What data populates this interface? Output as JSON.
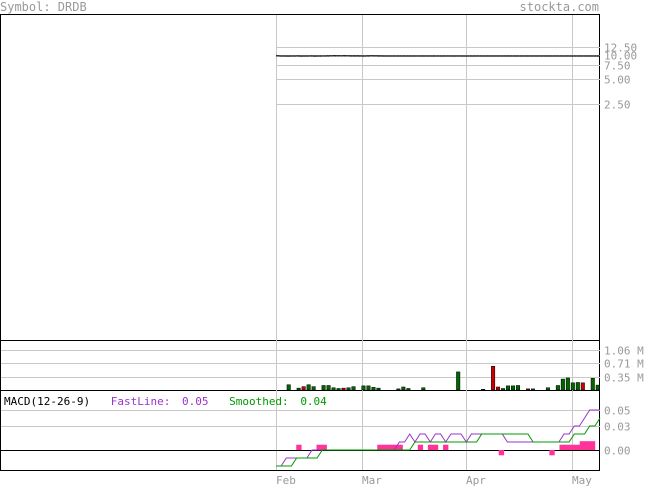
{
  "header": {
    "symbol_label": "Symbol: DRDB",
    "site_label": "stockta.com"
  },
  "colors": {
    "grid": "#c8c8c8",
    "axis_text": "#999999",
    "price": "#000000",
    "volume_up": "#006600",
    "volume_down": "#cc0000",
    "macd_fast": "#9933cc",
    "macd_smooth": "#009900",
    "histogram": "#ff3399"
  },
  "chart_data": [
    {
      "type": "line",
      "name": "price-panel",
      "y_scale": "log",
      "ylim": [
        1.0,
        12.5
      ],
      "y_ticks": [
        12.5,
        10.0,
        7.5,
        5.0,
        2.5
      ],
      "y_tick_labels": [
        "12.50",
        "10.00",
        "7.50",
        "5.00",
        "2.50"
      ],
      "x_ticks": [
        "Feb",
        "Mar",
        "Apr",
        "May"
      ],
      "series": [
        {
          "values": [
            [
              9.75,
              9.72
            ],
            [
              9.7,
              9.68
            ],
            [
              9.7,
              9.68
            ],
            [
              9.69,
              9.67
            ],
            [
              9.7,
              9.68
            ],
            [
              9.7,
              9.68
            ],
            [
              9.71,
              9.69
            ],
            [
              9.7,
              9.67
            ],
            [
              9.7,
              9.68
            ],
            [
              9.7,
              9.68
            ],
            [
              9.71,
              9.69
            ],
            [
              9.69,
              9.67
            ],
            [
              9.7,
              9.68
            ],
            [
              9.7,
              9.68
            ],
            [
              9.71,
              9.68
            ],
            [
              9.73,
              9.7
            ],
            [
              9.74,
              9.71
            ],
            [
              9.76,
              9.73
            ],
            [
              9.75,
              9.72
            ],
            [
              9.74,
              9.71
            ],
            [
              9.76,
              9.72
            ],
            [
              9.74,
              9.71
            ],
            [
              9.73,
              9.7
            ],
            [
              9.72,
              9.69
            ],
            [
              9.73,
              9.7
            ],
            [
              9.71,
              9.69
            ],
            [
              9.7,
              9.68
            ],
            [
              9.72,
              9.7
            ],
            [
              9.75,
              9.72
            ],
            [
              9.73,
              9.71
            ],
            [
              9.72,
              9.7
            ],
            [
              9.71,
              9.69
            ],
            [
              9.7,
              9.68
            ],
            [
              9.7,
              9.68
            ],
            [
              9.7,
              9.68
            ],
            [
              9.7,
              9.68
            ],
            [
              9.7,
              9.68
            ],
            [
              9.7,
              9.68
            ],
            [
              9.7,
              9.68
            ],
            [
              9.7,
              9.68
            ],
            [
              9.7,
              9.68
            ],
            [
              9.7,
              9.68
            ],
            [
              9.7,
              9.68
            ],
            [
              9.7,
              9.68
            ],
            [
              9.7,
              9.68
            ],
            [
              9.7,
              9.68
            ],
            [
              9.7,
              9.68
            ],
            [
              9.7,
              9.68
            ],
            [
              9.7,
              9.68
            ],
            [
              9.7,
              9.68
            ],
            [
              9.7,
              9.68
            ],
            [
              9.7,
              9.68
            ],
            [
              9.7,
              9.68
            ],
            [
              9.7,
              9.68
            ],
            [
              9.7,
              9.68
            ],
            [
              9.7,
              9.68
            ],
            [
              9.7,
              9.68
            ],
            [
              9.7,
              9.68
            ],
            [
              9.7,
              9.68
            ],
            [
              9.7,
              9.68
            ],
            [
              9.7,
              9.68
            ],
            [
              9.7,
              9.68
            ],
            [
              9.7,
              9.68
            ],
            [
              9.7,
              9.68
            ],
            [
              9.7,
              9.68
            ],
            [
              9.7,
              9.68
            ],
            [
              9.7,
              9.68
            ],
            [
              9.7,
              9.68
            ],
            [
              9.7,
              9.68
            ],
            [
              9.7,
              9.68
            ],
            [
              9.7,
              9.68
            ],
            [
              9.7,
              9.68
            ],
            [
              9.7,
              9.68
            ],
            [
              9.7,
              9.68
            ],
            [
              9.7,
              9.68
            ],
            [
              9.7,
              9.68
            ],
            [
              9.7,
              9.68
            ],
            [
              9.7,
              9.68
            ],
            [
              9.7,
              9.68
            ],
            [
              9.7,
              9.68
            ],
            [
              9.7,
              9.68
            ],
            [
              9.7,
              9.68
            ],
            [
              9.7,
              9.68
            ],
            [
              9.7,
              9.68
            ],
            [
              9.7,
              9.68
            ],
            [
              9.7,
              9.68
            ],
            [
              9.7,
              9.68
            ],
            [
              9.7,
              9.68
            ],
            [
              9.7,
              9.68
            ],
            [
              9.7,
              9.68
            ],
            [
              9.7,
              9.68
            ],
            [
              9.7,
              9.68
            ],
            [
              9.7,
              9.68
            ],
            [
              9.7,
              9.68
            ],
            [
              9.7,
              9.68
            ],
            [
              9.7,
              9.68
            ],
            [
              9.7,
              9.68
            ]
          ]
        }
      ]
    },
    {
      "type": "bar",
      "name": "volume-panel",
      "ylim": [
        0,
        1.3
      ],
      "y_ticks": [
        1.06,
        0.71,
        0.35
      ],
      "y_tick_labels": [
        "1.06 M",
        "0.71 M",
        "0.35 M"
      ],
      "series": [
        {
          "values": [
            [
              0,
              0
            ],
            [
              0,
              0
            ],
            [
              0.14,
              0
            ],
            [
              0,
              0
            ],
            [
              0.05,
              0
            ],
            [
              0.09,
              1
            ],
            [
              0.14,
              0
            ],
            [
              0.09,
              0
            ],
            [
              0,
              0
            ],
            [
              0.12,
              0
            ],
            [
              0.12,
              0
            ],
            [
              0.06,
              0
            ],
            [
              0.04,
              0
            ],
            [
              0.05,
              1
            ],
            [
              0.06,
              0
            ],
            [
              0.09,
              0
            ],
            [
              0,
              0
            ],
            [
              0.11,
              0
            ],
            [
              0.11,
              0
            ],
            [
              0.07,
              0
            ],
            [
              0.05,
              0
            ],
            [
              0,
              0
            ],
            [
              0,
              0
            ],
            [
              0,
              0
            ],
            [
              0.03,
              0
            ],
            [
              0.08,
              0
            ],
            [
              0.04,
              0
            ],
            [
              0,
              0
            ],
            [
              0,
              0
            ],
            [
              0.06,
              0
            ],
            [
              0,
              0
            ],
            [
              0,
              0
            ],
            [
              0,
              0
            ],
            [
              0,
              0
            ],
            [
              0,
              0
            ],
            [
              0,
              0
            ],
            [
              0.48,
              0
            ],
            [
              0,
              0
            ],
            [
              0,
              0
            ],
            [
              0,
              0
            ],
            [
              0,
              0
            ],
            [
              0.02,
              0
            ],
            [
              0,
              0
            ],
            [
              0.63,
              1
            ],
            [
              0.08,
              1
            ],
            [
              0.04,
              0
            ],
            [
              0.11,
              0
            ],
            [
              0.11,
              0
            ],
            [
              0.12,
              0
            ],
            [
              0,
              0
            ],
            [
              0.03,
              1
            ],
            [
              0.03,
              0
            ],
            [
              0,
              0
            ],
            [
              0,
              0
            ],
            [
              0.06,
              0
            ],
            [
              0,
              0
            ],
            [
              0.12,
              0
            ],
            [
              0.29,
              0
            ],
            [
              0.32,
              0
            ],
            [
              0.19,
              0
            ],
            [
              0.2,
              0
            ],
            [
              0.19,
              1
            ],
            [
              0,
              0
            ],
            [
              0.31,
              0
            ],
            [
              0.13,
              0
            ]
          ]
        }
      ]
    },
    {
      "type": "line",
      "name": "macd-panel",
      "title": "MACD(12-26-9)",
      "legend": [
        {
          "label": "FastLine:",
          "value": "0.05"
        },
        {
          "label": "Smoothed:",
          "value": "0.04"
        }
      ],
      "ylim": [
        -0.025,
        0.055
      ],
      "y_ticks": [
        0.05,
        0.03,
        0.0
      ],
      "y_tick_labels": [
        "0.05",
        "0.03",
        "0.00"
      ],
      "series": [
        {
          "name": "FastLine",
          "values": [
            -0.02,
            -0.02,
            -0.01,
            -0.01,
            -0.01,
            -0.01,
            -0.01,
            0,
            0,
            0,
            0,
            0,
            0,
            0,
            0,
            0,
            0,
            0,
            0,
            0,
            0,
            0,
            0,
            0,
            0.01,
            0.01,
            0.02,
            0.01,
            0.02,
            0.02,
            0.01,
            0.02,
            0.02,
            0.01,
            0.02,
            0.02,
            0.02,
            0.01,
            0.02,
            0.02,
            0.02,
            0.02,
            0.02,
            0.02,
            0.02,
            0.01,
            0.01,
            0.01,
            0.01,
            0.01,
            0.01,
            0.01,
            0.01,
            0.01,
            0.01,
            0.01,
            0.02,
            0.02,
            0.03,
            0.03,
            0.04,
            0.05,
            0.05,
            0.05
          ]
        },
        {
          "name": "Smoothed",
          "values": [
            -0.02,
            -0.02,
            -0.02,
            -0.02,
            -0.01,
            -0.01,
            -0.01,
            -0.01,
            -0.01,
            0,
            0,
            0,
            0,
            0,
            0,
            0,
            0,
            0,
            0,
            0,
            0,
            0,
            0,
            0,
            0,
            0,
            0,
            0.01,
            0.01,
            0.01,
            0.01,
            0.01,
            0.01,
            0.01,
            0.01,
            0.01,
            0.01,
            0.01,
            0.01,
            0.01,
            0.02,
            0.02,
            0.02,
            0.02,
            0.02,
            0.02,
            0.02,
            0.02,
            0.02,
            0.02,
            0.01,
            0.01,
            0.01,
            0.01,
            0.01,
            0.01,
            0.01,
            0.01,
            0.02,
            0.02,
            0.02,
            0.03,
            0.03,
            0.04
          ]
        },
        {
          "name": "Histogram",
          "values": [
            0,
            0,
            0,
            0,
            0.003,
            0,
            0,
            0,
            0.003,
            0.003,
            0,
            0,
            0,
            0,
            0,
            0,
            0,
            0,
            0,
            0,
            0.003,
            0.003,
            0.003,
            0.003,
            0.003,
            0,
            0,
            0,
            0.003,
            0,
            0.003,
            0.003,
            0,
            0.003,
            0,
            0,
            0,
            0,
            0,
            0,
            0,
            0,
            0,
            0,
            -0.003,
            0,
            0,
            0,
            0,
            0,
            0,
            0,
            0,
            0,
            -0.003,
            0,
            0.003,
            0.003,
            0.003,
            0.003,
            0.005,
            0.005,
            0.005,
            0
          ]
        }
      ]
    }
  ]
}
